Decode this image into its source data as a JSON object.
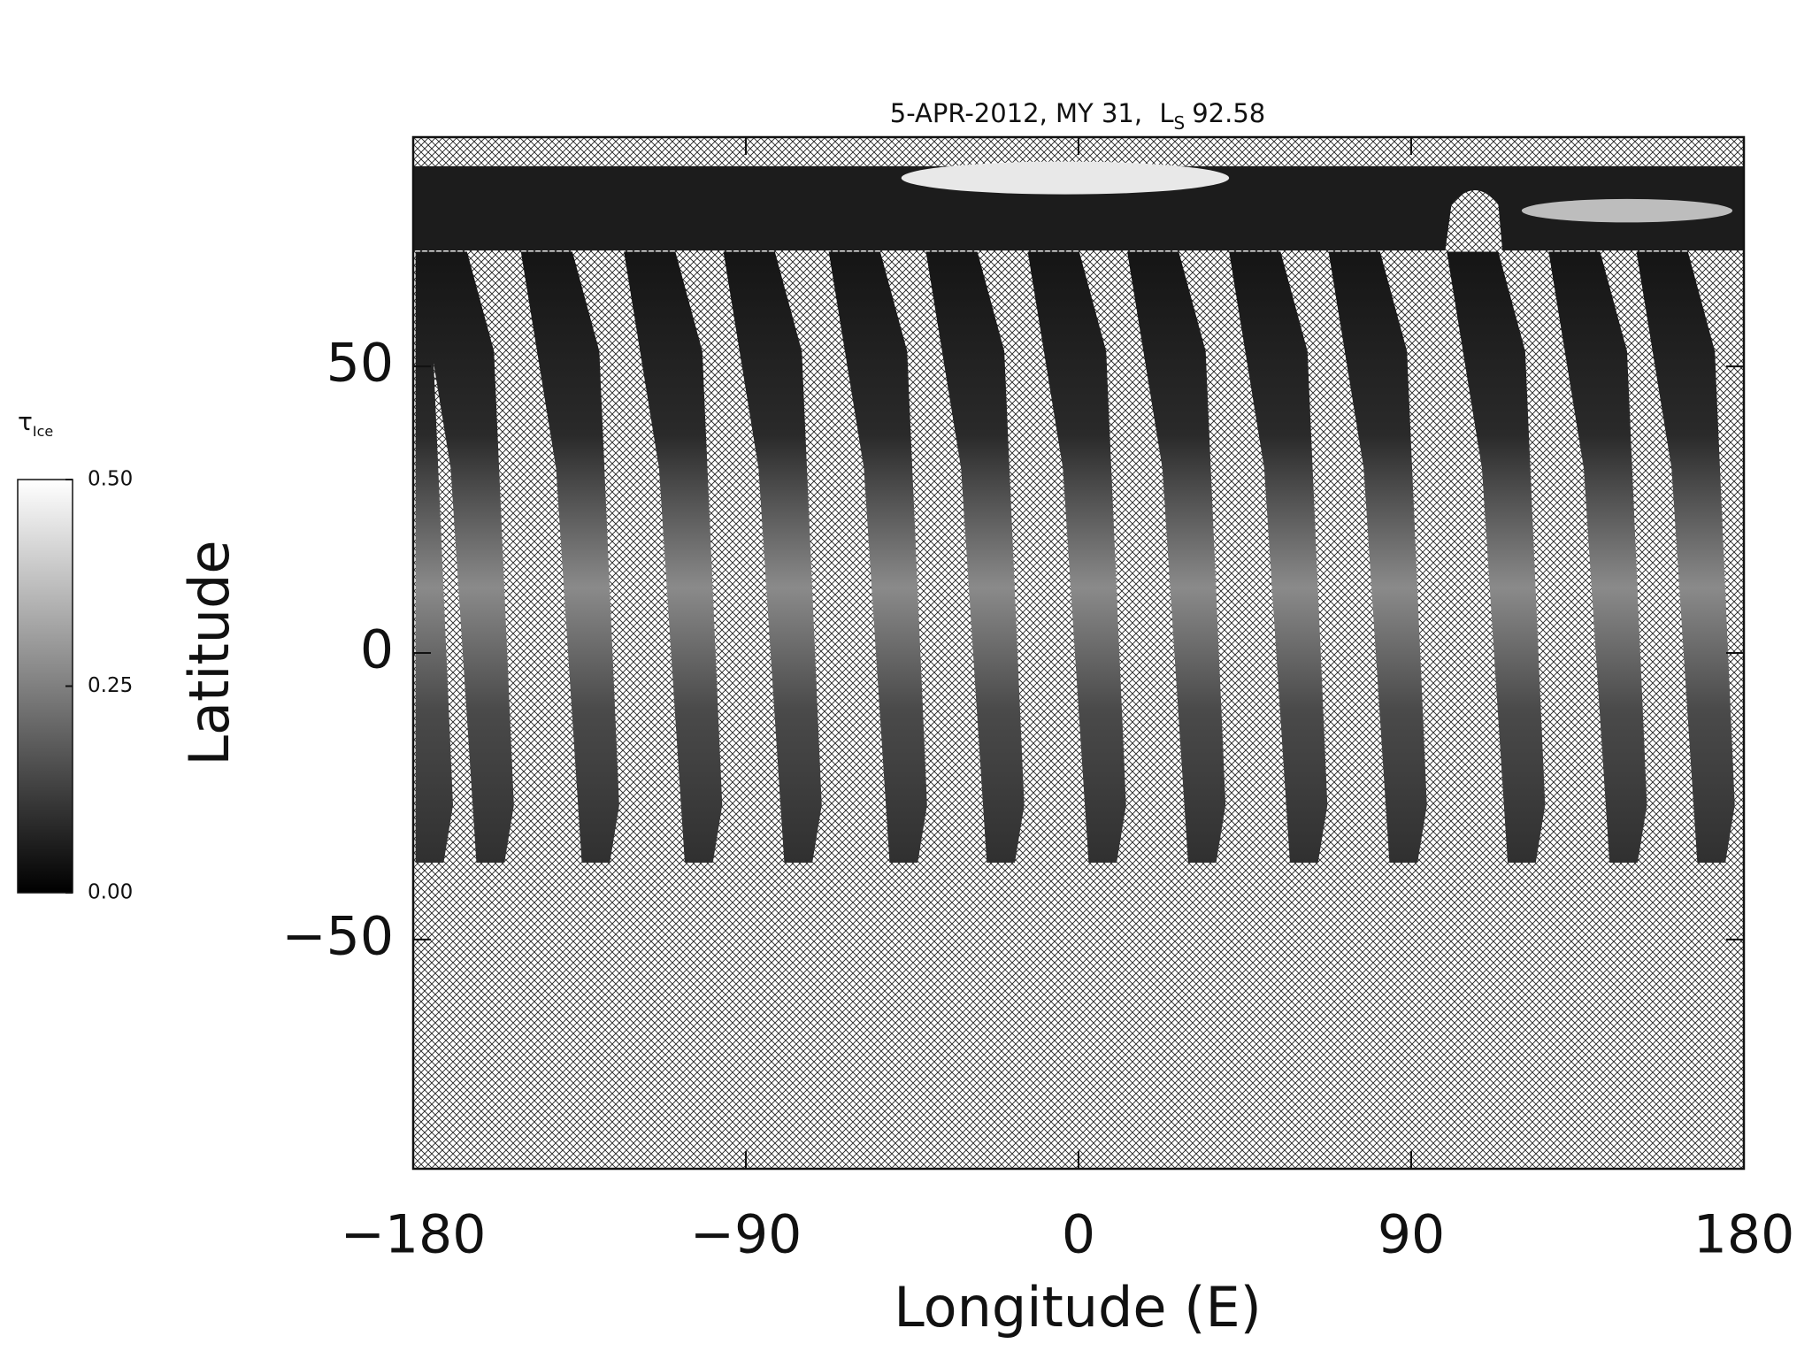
{
  "chart_data": {
    "type": "map",
    "title": "5-APR-2012, MY 31,",
    "title_symbol": "L",
    "title_subscript": "S",
    "title_value": "92.58",
    "x_label": "Longitude (E)",
    "y_label": "Latitude",
    "xlim": [
      -180,
      180
    ],
    "xticks": [
      -180,
      -90,
      0,
      90,
      180
    ],
    "ylim": [
      -90,
      90
    ],
    "yticks": [
      -50,
      0,
      50
    ],
    "colorbar_label": "τ",
    "colorbar_label_subscript": "Ice",
    "clim": [
      0,
      0.5
    ],
    "colorbar_ticks": [
      {
        "value": 0,
        "label": "0.00"
      },
      {
        "value": 0.25,
        "label": "0.25"
      },
      {
        "value": 0.5,
        "label": "0.50"
      }
    ],
    "colormap": [
      "#000000",
      "#ffffff"
    ]
  }
}
